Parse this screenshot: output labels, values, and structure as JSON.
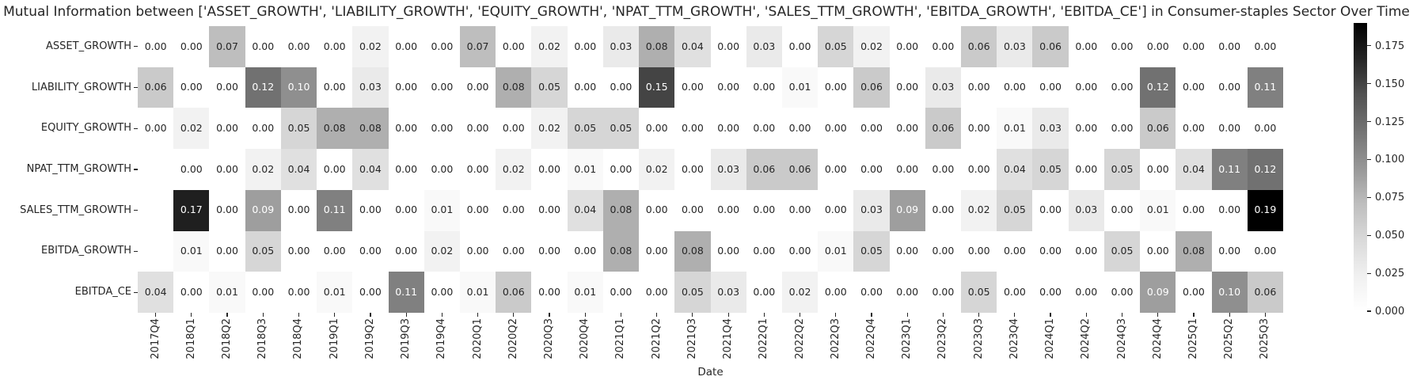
{
  "chart_data": {
    "type": "heatmap",
    "title": "Mutual Information between ['ASSET_GROWTH', 'LIABILITY_GROWTH', 'EQUITY_GROWTH', 'NPAT_TTM_GROWTH', 'SALES_TTM_GROWTH', 'EBITDA_GROWTH', 'EBITDA_CE'] in Consumer-staples Sector Over Time",
    "xlabel": "Date",
    "rows": [
      "ASSET_GROWTH",
      "LIABILITY_GROWTH",
      "EQUITY_GROWTH",
      "NPAT_TTM_GROWTH",
      "SALES_TTM_GROWTH",
      "EBITDA_GROWTH",
      "EBITDA_CE"
    ],
    "columns": [
      "2017Q4",
      "2018Q1",
      "2018Q2",
      "2018Q3",
      "2018Q4",
      "2019Q1",
      "2019Q2",
      "2019Q3",
      "2019Q4",
      "2020Q1",
      "2020Q2",
      "2020Q3",
      "2020Q4",
      "2021Q1",
      "2021Q2",
      "2021Q3",
      "2021Q4",
      "2022Q1",
      "2022Q2",
      "2022Q3",
      "2022Q4",
      "2023Q1",
      "2023Q2",
      "2023Q3",
      "2023Q4",
      "2024Q1",
      "2024Q2",
      "2024Q3",
      "2024Q4",
      "2025Q1",
      "2025Q2",
      "2025Q3"
    ],
    "matrix": [
      [
        0.0,
        0.0,
        0.07,
        0.0,
        0.0,
        0.0,
        0.02,
        0.0,
        0.0,
        0.07,
        0.0,
        0.02,
        0.0,
        0.03,
        0.08,
        0.04,
        0.0,
        0.03,
        0.0,
        0.05,
        0.02,
        0.0,
        0.0,
        0.06,
        0.03,
        0.06,
        0.0,
        0.0,
        0.0,
        0.0,
        0.0,
        0.0
      ],
      [
        0.06,
        0.0,
        0.0,
        0.12,
        0.1,
        0.0,
        0.03,
        0.0,
        0.0,
        0.0,
        0.08,
        0.05,
        0.0,
        0.0,
        0.15,
        0.0,
        0.0,
        0.0,
        0.01,
        0.0,
        0.06,
        0.0,
        0.03,
        0.0,
        0.0,
        0.0,
        0.0,
        0.0,
        0.12,
        0.0,
        0.0,
        0.11
      ],
      [
        0.0,
        0.02,
        0.0,
        0.0,
        0.05,
        0.08,
        0.08,
        0.0,
        0.0,
        0.0,
        0.0,
        0.02,
        0.05,
        0.05,
        0.0,
        0.0,
        0.0,
        0.0,
        0.0,
        0.0,
        0.0,
        0.0,
        0.06,
        0.0,
        0.01,
        0.03,
        0.0,
        0.0,
        0.06,
        0.0,
        0.0,
        0.0
      ],
      [
        null,
        0.0,
        0.0,
        0.02,
        0.04,
        0.0,
        0.04,
        0.0,
        0.0,
        0.0,
        0.02,
        0.0,
        0.01,
        0.0,
        0.02,
        0.0,
        0.03,
        0.06,
        0.06,
        0.0,
        0.0,
        0.0,
        0.0,
        0.0,
        0.04,
        0.05,
        0.0,
        0.05,
        0.0,
        0.04,
        0.11,
        0.12
      ],
      [
        null,
        0.17,
        0.0,
        0.09,
        0.0,
        0.11,
        0.0,
        0.0,
        0.01,
        0.0,
        0.0,
        0.0,
        0.04,
        0.08,
        0.0,
        0.0,
        0.0,
        0.0,
        0.0,
        0.0,
        0.03,
        0.09,
        0.0,
        0.02,
        0.05,
        0.0,
        0.03,
        0.0,
        0.01,
        0.0,
        0.0,
        0.19
      ],
      [
        null,
        0.01,
        0.0,
        0.05,
        0.0,
        0.0,
        0.0,
        0.0,
        0.02,
        0.0,
        0.0,
        0.0,
        0.0,
        0.08,
        0.0,
        0.08,
        0.0,
        0.0,
        0.0,
        0.01,
        0.05,
        0.0,
        0.0,
        0.0,
        0.0,
        0.0,
        0.0,
        0.05,
        0.0,
        0.08,
        0.0,
        0.0
      ],
      [
        0.04,
        0.0,
        0.01,
        0.0,
        0.0,
        0.01,
        0.0,
        0.11,
        0.0,
        0.01,
        0.06,
        0.0,
        0.01,
        0.0,
        0.0,
        0.05,
        0.03,
        0.0,
        0.02,
        0.0,
        0.0,
        0.0,
        0.0,
        0.05,
        0.0,
        0.0,
        0.0,
        0.0,
        0.09,
        0.0,
        0.1,
        0.06
      ]
    ],
    "vmin": 0.0,
    "vmax": 0.19,
    "colormap": "Greys",
    "colorbar": {
      "ticks": [
        "0.175",
        "0.150",
        "0.125",
        "0.100",
        "0.075",
        "0.050",
        "0.025",
        "0.000"
      ],
      "tick_values": [
        0.175,
        0.15,
        0.125,
        0.1,
        0.075,
        0.05,
        0.025,
        0.0
      ]
    },
    "layout": {
      "grid": false,
      "annotated": true,
      "colorbar_position": "right"
    },
    "colors": {
      "background": "#ffffff",
      "text_dark": "#262626",
      "text_light": "#ffffff",
      "greys_stops": [
        "#ffffff",
        "#f0f0f0",
        "#d9d9d9",
        "#bdbdbd",
        "#969696",
        "#737373",
        "#525252",
        "#252525",
        "#000000"
      ]
    }
  }
}
